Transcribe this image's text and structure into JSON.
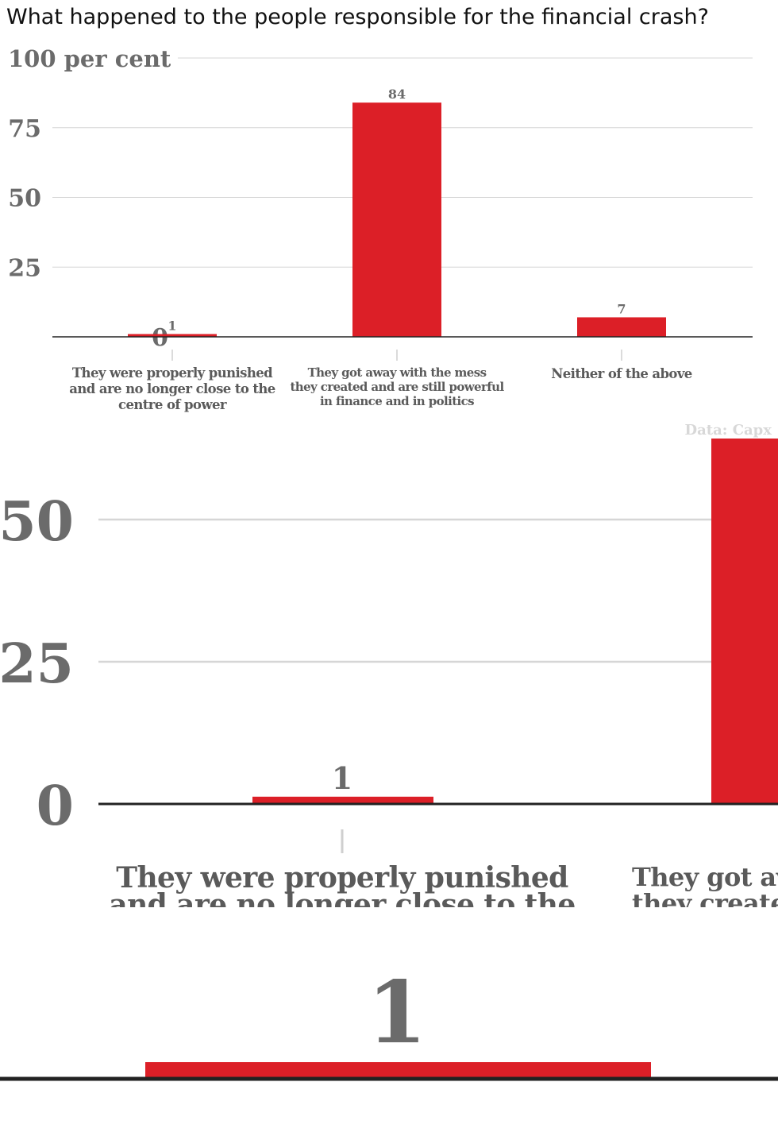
{
  "question": "What happened to the people responsible for the financial crash?",
  "source": "Data: Capx",
  "colors": {
    "bar": "#dc1f27",
    "axis_text": "#6b6b6b",
    "grid": "#d6d6d6",
    "baseline": "#222222"
  },
  "chart_data": {
    "type": "bar",
    "title": "",
    "ylabel": "100 per cent",
    "ylim": [
      0,
      100
    ],
    "yticks": [
      0,
      25,
      50,
      75,
      100
    ],
    "ytick_labels": [
      "0",
      "25",
      "50",
      "75",
      "100 per cent"
    ],
    "categories": [
      [
        "They were properly punished",
        "and are no longer close to the",
        "centre of power"
      ],
      [
        "They got away with the mess",
        "they created and are still powerful",
        "in finance and in politics"
      ],
      [
        "Neither of the above"
      ]
    ],
    "values": [
      1,
      84,
      7
    ],
    "value_labels": [
      "1",
      "84",
      "7"
    ],
    "grid": true
  },
  "zoom1": {
    "ytick_labels": [
      "0",
      "25",
      "50"
    ],
    "value_label": "1",
    "cat_label_partial": [
      "They were properly punished",
      "and are no longer close to the"
    ],
    "cat2_label_partial": [
      "They got away with the mess",
      "they created and are still powerful"
    ]
  },
  "zoom2": {
    "value_label": "1"
  }
}
